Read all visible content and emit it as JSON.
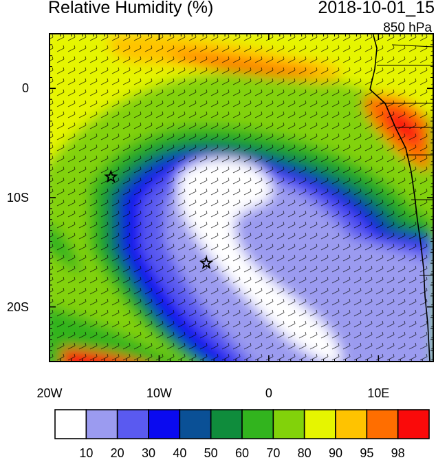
{
  "title": "Relative Humidity (%)",
  "datetime": "2018-10-01_15",
  "level": "850 hPa",
  "map": {
    "lon_range": [
      -20,
      15
    ],
    "lat_range": [
      -25,
      5
    ],
    "lon_ticks": [
      {
        "value": -20,
        "label": "20W"
      },
      {
        "value": -10,
        "label": "10W"
      },
      {
        "value": 0,
        "label": "0"
      },
      {
        "value": 10,
        "label": "10E"
      }
    ],
    "lat_ticks": [
      {
        "value": 0,
        "label": "0"
      },
      {
        "value": -10,
        "label": "10S"
      },
      {
        "value": -20,
        "label": "20S"
      }
    ],
    "markers": [
      {
        "type": "star",
        "lon": -14.4,
        "lat": -8.1
      },
      {
        "type": "star",
        "lon": -5.7,
        "lat": -16.0
      }
    ]
  },
  "colorbar": {
    "colors": [
      "#ffffff",
      "#9b9bf0",
      "#5a5af0",
      "#0a0af0",
      "#0a5096",
      "#0f8c3c",
      "#32b41e",
      "#82d20a",
      "#e6f500",
      "#ffc300",
      "#ff6e00",
      "#fa0a0a"
    ],
    "labels": [
      "10",
      "20",
      "30",
      "40",
      "50",
      "60",
      "70",
      "80",
      "90",
      "95",
      "98"
    ]
  }
}
